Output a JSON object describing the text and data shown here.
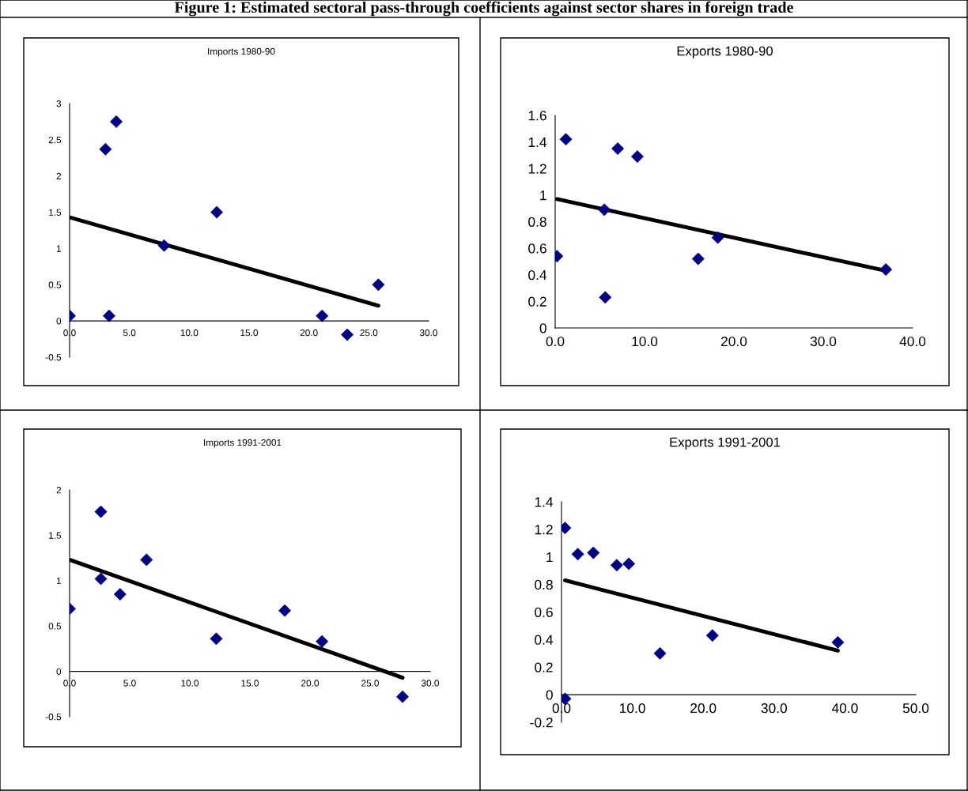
{
  "chart_data": [
    {
      "type": "scatter",
      "title": "Imports 1980-90",
      "annotations": [
        "Figure 1: Estimated sectoral pass-through coefficients against sector shares in foreign trade"
      ],
      "grid": false,
      "xlim": [
        0,
        30
      ],
      "xticks": [
        {
          "value": 0,
          "label": "0.0"
        },
        {
          "value": 5,
          "label": "5.0"
        },
        {
          "value": 10,
          "label": "10.0"
        },
        {
          "value": 15,
          "label": "15.0"
        },
        {
          "value": 20,
          "label": "20.0"
        },
        {
          "value": 25,
          "label": "25.0"
        },
        {
          "value": 30,
          "label": "30.0"
        }
      ],
      "ylim": [
        -0.5,
        3
      ],
      "yticks": [
        -0.5,
        0,
        0.5,
        1,
        1.5,
        2,
        2.5,
        3
      ],
      "series": [
        {
          "marker": "diamond",
          "color": "#000080",
          "x": [
            0,
            3.0,
            3.9,
            3.3,
            7.9,
            12.3,
            21.1,
            23.2,
            25.8
          ],
          "values": [
            0.07,
            2.37,
            2.75,
            0.07,
            1.04,
            1.5,
            0.07,
            -0.19,
            0.5
          ]
        },
        {
          "type": "line",
          "marker": "none",
          "color": "#000000",
          "x": [
            0,
            25.8
          ],
          "values": [
            1.43,
            0.21
          ]
        }
      ]
    },
    {
      "type": "scatter",
      "title": "Exports 1980-90",
      "grid": false,
      "xlim": [
        0,
        40
      ],
      "xticks": [
        {
          "value": 0,
          "label": "0.0"
        },
        {
          "value": 10,
          "label": "10.0"
        },
        {
          "value": 20,
          "label": "20.0"
        },
        {
          "value": 30,
          "label": "30.0"
        },
        {
          "value": 40,
          "label": "40.0"
        }
      ],
      "ylim": [
        0,
        1.6
      ],
      "yticks": [
        0,
        0.2,
        0.4,
        0.6,
        0.8,
        1,
        1.2,
        1.4,
        1.6
      ],
      "series": [
        {
          "marker": "diamond",
          "color": "#000080",
          "x": [
            0.2,
            1.2,
            5.5,
            5.6,
            7.0,
            9.2,
            16.0,
            18.2,
            37.0
          ],
          "values": [
            0.54,
            1.42,
            0.89,
            0.23,
            1.35,
            1.29,
            0.52,
            0.68,
            0.44
          ]
        },
        {
          "type": "line",
          "marker": "none",
          "color": "#000000",
          "x": [
            0.2,
            37.0
          ],
          "values": [
            0.97,
            0.43
          ]
        }
      ]
    },
    {
      "type": "scatter",
      "title": "Imports 1991-2001",
      "grid": false,
      "xlim": [
        0,
        30
      ],
      "xticks": [
        {
          "value": 0,
          "label": "0.0"
        },
        {
          "value": 5,
          "label": "5.0"
        },
        {
          "value": 10,
          "label": "10.0"
        },
        {
          "value": 15,
          "label": "15.0"
        },
        {
          "value": 20,
          "label": "20.0"
        },
        {
          "value": 25,
          "label": "25.0"
        },
        {
          "value": 30,
          "label": "30.0"
        }
      ],
      "ylim": [
        -0.5,
        2
      ],
      "yticks": [
        -0.5,
        0,
        0.5,
        1,
        1.5,
        2
      ],
      "series": [
        {
          "marker": "diamond",
          "color": "#000080",
          "x": [
            0,
            2.6,
            2.6,
            4.2,
            6.4,
            12.2,
            17.9,
            21.0,
            27.7
          ],
          "values": [
            0.69,
            1.76,
            1.02,
            0.85,
            1.23,
            0.36,
            0.67,
            0.33,
            -0.28
          ]
        },
        {
          "type": "line",
          "marker": "none",
          "color": "#000000",
          "x": [
            0,
            27.7
          ],
          "values": [
            1.23,
            -0.07
          ]
        }
      ]
    },
    {
      "type": "scatter",
      "title": "Exports 1991-2001",
      "grid": false,
      "xlim": [
        0,
        50
      ],
      "xticks": [
        {
          "value": 0,
          "label": "0.0"
        },
        {
          "value": 10,
          "label": "10.0"
        },
        {
          "value": 20,
          "label": "20.0"
        },
        {
          "value": 30,
          "label": "30.0"
        },
        {
          "value": 40,
          "label": "40.0"
        },
        {
          "value": 50,
          "label": "50.0"
        }
      ],
      "ylim": [
        -0.2,
        1.4
      ],
      "yticks": [
        -0.2,
        0,
        0.2,
        0.4,
        0.6,
        0.8,
        1,
        1.2,
        1.4
      ],
      "series": [
        {
          "marker": "diamond",
          "color": "#000080",
          "x": [
            0.5,
            2.3,
            4.5,
            7.8,
            9.5,
            13.9,
            21.3,
            39.0,
            0.5
          ],
          "values": [
            1.21,
            1.02,
            1.03,
            0.94,
            0.95,
            0.3,
            0.43,
            0.38,
            -0.03
          ]
        },
        {
          "type": "line",
          "marker": "none",
          "color": "#000000",
          "x": [
            0.5,
            39.0
          ],
          "values": [
            0.83,
            0.32
          ]
        }
      ]
    }
  ]
}
